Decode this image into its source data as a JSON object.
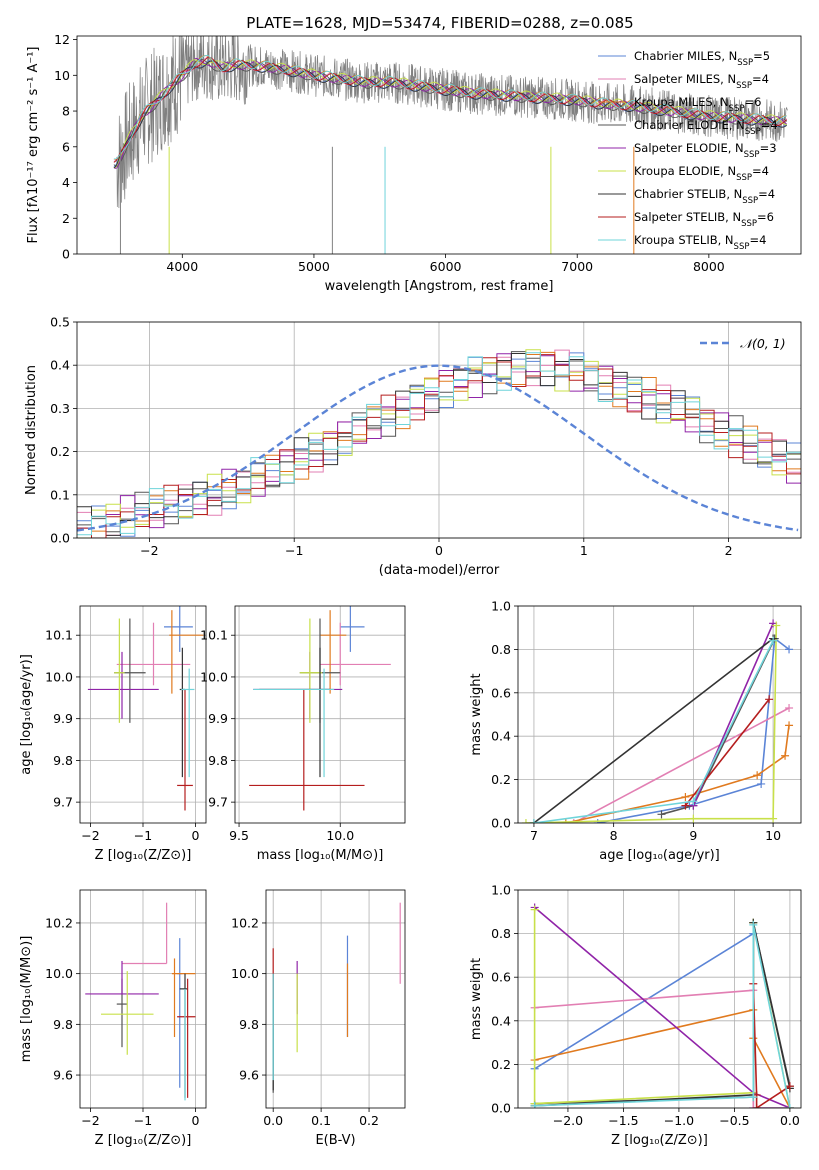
{
  "figure": {
    "title": "PLATE=1628, MJD=53474, FIBERID=0288, z=0.085"
  },
  "series_styles": [
    {
      "name": "Chabrier MILES",
      "nssp": "5",
      "color": "#5b84d6"
    },
    {
      "name": "Salpeter MILES",
      "nssp": "4",
      "color": "#e27fb3"
    },
    {
      "name": "Kroupa MILES",
      "nssp": "6",
      "color": "#e07a1f"
    },
    {
      "name": "Chabrier ELODIE",
      "nssp": "4",
      "color": "#555555"
    },
    {
      "name": "Salpeter ELODIE",
      "nssp": "3",
      "color": "#9024a8"
    },
    {
      "name": "Kroupa ELODIE",
      "nssp": "4",
      "color": "#c8e04a"
    },
    {
      "name": "Chabrier STELIB",
      "nssp": "4",
      "color": "#333333"
    },
    {
      "name": "Salpeter STELIB",
      "nssp": "6",
      "color": "#b51e1e"
    },
    {
      "name": "Kroupa STELIB",
      "nssp": "4",
      "color": "#6fd4da"
    }
  ],
  "chart_data": [
    {
      "id": "spectrum",
      "type": "line",
      "xlabel": "wavelength [Angstrom, rest frame]",
      "ylabel": "Flux [fλ10⁻¹⁷ erg cm⁻² s⁻¹ A⁻¹]",
      "xlim": [
        3200,
        8700
      ],
      "ylim": [
        0,
        12.2
      ],
      "xticks": [
        4000,
        5000,
        6000,
        7000,
        8000
      ],
      "yticks": [
        0,
        2,
        4,
        6,
        8,
        10,
        12
      ],
      "legend_position": "right",
      "data_line_color": "#808080",
      "model_envelope": {
        "x": [
          3500,
          3600,
          3700,
          3800,
          3900,
          4000,
          4100,
          4200,
          4300,
          4400,
          4600,
          4800,
          5000,
          5200,
          5400,
          5600,
          5800,
          6000,
          6200,
          6400,
          6600,
          6800,
          7000,
          7200,
          7400,
          7600,
          7800,
          8000,
          8200,
          8400,
          8600
        ],
        "y": [
          5.0,
          6.5,
          7.8,
          8.5,
          9.3,
          10.0,
          10.7,
          10.8,
          10.4,
          10.6,
          10.5,
          10.3,
          10.0,
          9.8,
          9.6,
          9.6,
          9.4,
          9.2,
          9.0,
          8.9,
          8.8,
          8.7,
          8.6,
          8.4,
          8.3,
          8.1,
          7.9,
          7.7,
          7.6,
          7.5,
          7.4
        ]
      }
    },
    {
      "id": "residuals",
      "type": "histogram",
      "xlabel": "(data-model)/error",
      "ylabel": "Normed distribution",
      "xlim": [
        -2.5,
        2.5
      ],
      "ylim": [
        0,
        0.5
      ],
      "xticks": [
        -2,
        -1,
        0,
        1,
        2
      ],
      "yticks": [
        0.0,
        0.1,
        0.2,
        0.3,
        0.4,
        0.5
      ],
      "bin_edges_start": -2.5,
      "bin_width": 0.1,
      "reference_curve": {
        "label": "𝒩(0, 1)",
        "mean": 0,
        "sigma": 1,
        "color": "#5b84d6",
        "style": "dashed"
      },
      "base_values": [
        0.025,
        0.03,
        0.04,
        0.05,
        0.06,
        0.065,
        0.075,
        0.08,
        0.09,
        0.1,
        0.115,
        0.125,
        0.14,
        0.15,
        0.165,
        0.185,
        0.2,
        0.215,
        0.235,
        0.25,
        0.27,
        0.285,
        0.3,
        0.32,
        0.335,
        0.35,
        0.36,
        0.375,
        0.38,
        0.39,
        0.395,
        0.4,
        0.395,
        0.39,
        0.385,
        0.37,
        0.36,
        0.35,
        0.335,
        0.325,
        0.31,
        0.3,
        0.285,
        0.265,
        0.25,
        0.235,
        0.215,
        0.2,
        0.185,
        0.17
      ],
      "legend_position": "top-right"
    },
    {
      "id": "age_vs_Z",
      "type": "errorbar",
      "xlabel": "Z [log₁₀(Z/Z⊙)]",
      "ylabel": "age  [log₁₀(age/yr)]",
      "xlim": [
        -2.2,
        0.2
      ],
      "ylim": [
        9.65,
        10.17
      ],
      "xticks": [
        -2,
        -1,
        0
      ],
      "yticks": [
        9.7,
        9.8,
        9.9,
        10.0,
        10.1
      ],
      "points": [
        {
          "s": 0,
          "x": -0.3,
          "y": 10.12,
          "xl": 0.3,
          "xh": 0.25,
          "yl": 0.06,
          "yh": 0.05
        },
        {
          "s": 1,
          "x": -0.8,
          "y": 10.03,
          "xl": 0.7,
          "xh": 0.7,
          "yl": 0.05,
          "yh": 0.1
        },
        {
          "s": 2,
          "x": -0.45,
          "y": 10.1,
          "xl": 0.05,
          "xh": 0.6,
          "yl": 0.14,
          "yh": 0.06
        },
        {
          "s": 3,
          "x": -1.25,
          "y": 10.01,
          "xl": 0.3,
          "xh": 0.3,
          "yl": 0.12,
          "yh": 0.13
        },
        {
          "s": 4,
          "x": -1.4,
          "y": 9.97,
          "xl": 0.65,
          "xh": 0.7,
          "yl": 0.07,
          "yh": 0.09
        },
        {
          "s": 5,
          "x": -1.45,
          "y": 10.01,
          "xl": 0.1,
          "xh": 0.1,
          "yl": 0.12,
          "yh": 0.13
        },
        {
          "s": 6,
          "x": -0.25,
          "y": 9.97,
          "xl": 0.05,
          "xh": 0.05,
          "yl": 0.21,
          "yh": 0.1
        },
        {
          "s": 7,
          "x": -0.2,
          "y": 9.74,
          "xl": 0.15,
          "xh": 0.15,
          "yl": 0.06,
          "yh": 0.23
        },
        {
          "s": 8,
          "x": -0.12,
          "y": 9.97,
          "xl": 0.15,
          "xh": 0.1,
          "yl": 0.21,
          "yh": 0.05
        }
      ]
    },
    {
      "id": "age_vs_mass",
      "type": "errorbar",
      "xlabel": "mass [log₁₀(M/M⊙)]",
      "ylabel": "",
      "xlim": [
        9.48,
        10.32
      ],
      "ylim": [
        9.65,
        10.17
      ],
      "xticks": [
        9.5,
        10.0
      ],
      "yticks": [
        9.7,
        9.8,
        9.9,
        10.0,
        10.1
      ],
      "points": [
        {
          "s": 0,
          "x": 10.05,
          "y": 10.12,
          "xl": 0.05,
          "xh": 0.07,
          "yl": 0.06,
          "yh": 0.05
        },
        {
          "s": 1,
          "x": 10.0,
          "y": 10.03,
          "xl": 0.1,
          "xh": 0.25,
          "yl": 0.05,
          "yh": 0.1
        },
        {
          "s": 2,
          "x": 9.95,
          "y": 10.1,
          "xl": 0.05,
          "xh": 0.08,
          "yl": 0.14,
          "yh": 0.06
        },
        {
          "s": 3,
          "x": 9.9,
          "y": 10.01,
          "xl": 0.1,
          "xh": 0.1,
          "yl": 0.12,
          "yh": 0.13
        },
        {
          "s": 4,
          "x": 9.85,
          "y": 9.97,
          "xl": 0.28,
          "xh": 0.16,
          "yl": 0.07,
          "yh": 0.09
        },
        {
          "s": 5,
          "x": 9.85,
          "y": 10.01,
          "xl": 0.05,
          "xh": 0.06,
          "yl": 0.12,
          "yh": 0.13
        },
        {
          "s": 6,
          "x": 9.9,
          "y": 9.97,
          "xl": 0.3,
          "xh": 0.05,
          "yl": 0.21,
          "yh": 0.1
        },
        {
          "s": 7,
          "x": 9.82,
          "y": 9.74,
          "xl": 0.27,
          "xh": 0.3,
          "yl": 0.06,
          "yh": 0.23
        },
        {
          "s": 8,
          "x": 9.92,
          "y": 9.97,
          "xl": 0.35,
          "xh": 0.05,
          "yl": 0.21,
          "yh": 0.05
        }
      ]
    },
    {
      "id": "weight_vs_age",
      "type": "line",
      "xlabel": "age  [log₁₀(age/yr)]",
      "ylabel": "mass weight",
      "xlim": [
        6.8,
        10.35
      ],
      "ylim": [
        0,
        1.0
      ],
      "xticks": [
        7,
        8,
        9,
        10
      ],
      "yticks": [
        0.0,
        0.2,
        0.4,
        0.6,
        0.8,
        1.0
      ],
      "series": [
        {
          "s": 0,
          "x": [
            7.8,
            8.95,
            9.85,
            10.02,
            10.2
          ],
          "y": [
            0.0,
            0.08,
            0.18,
            0.85,
            0.8
          ]
        },
        {
          "s": 1,
          "x": [
            7.5,
            10.2
          ],
          "y": [
            0.0,
            0.53
          ]
        },
        {
          "s": 2,
          "x": [
            7.4,
            8.9,
            9.8,
            10.15,
            10.2
          ],
          "y": [
            0.0,
            0.12,
            0.22,
            0.31,
            0.45
          ]
        },
        {
          "s": 3,
          "x": [
            8.6,
            9.0,
            10.02
          ],
          "y": [
            0.04,
            0.08,
            0.85
          ]
        },
        {
          "s": 4,
          "x": [
            9.0,
            10.0
          ],
          "y": [
            0.08,
            0.92
          ]
        },
        {
          "s": 5,
          "x": [
            6.9,
            9.0,
            10.0,
            10.04
          ],
          "y": [
            0.0,
            0.02,
            0.02,
            0.91
          ]
        },
        {
          "s": 6,
          "x": [
            7.0,
            10.0
          ],
          "y": [
            0.0,
            0.85
          ]
        },
        {
          "s": 7,
          "x": [
            8.9,
            9.95
          ],
          "y": [
            0.08,
            0.57
          ]
        },
        {
          "s": 8,
          "x": [
            7.0,
            9.0,
            10.0
          ],
          "y": [
            0.0,
            0.1,
            0.84
          ]
        }
      ]
    },
    {
      "id": "mass_vs_Z",
      "type": "errorbar",
      "xlabel": "Z [log₁₀(Z/Z⊙)]",
      "ylabel": "mass [log₁₀(M/M⊙)]",
      "xlim": [
        -2.2,
        0.2
      ],
      "ylim": [
        9.47,
        10.33
      ],
      "xticks": [
        -2,
        -1,
        0
      ],
      "yticks": [
        9.6,
        9.8,
        10.0,
        10.2
      ],
      "points": [
        {
          "s": 0,
          "x": -0.3,
          "y": 10.0,
          "xl": 0.05,
          "xh": 0.05,
          "yl": 0.45,
          "yh": 0.14
        },
        {
          "s": 1,
          "x": -0.55,
          "y": 10.04,
          "xl": 0.85,
          "xh": 0.0,
          "yl": 0.0,
          "yh": 0.24
        },
        {
          "s": 2,
          "x": -0.4,
          "y": 10.0,
          "xl": 0.05,
          "xh": 0.4,
          "yl": 0.25,
          "yh": 0.06
        },
        {
          "s": 3,
          "x": -1.4,
          "y": 9.88,
          "xl": 0.1,
          "xh": 0.1,
          "yl": 0.17,
          "yh": 0.1
        },
        {
          "s": 4,
          "x": -1.4,
          "y": 9.92,
          "xl": 0.7,
          "xh": 0.7,
          "yl": 0.0,
          "yh": 0.13
        },
        {
          "s": 5,
          "x": -1.3,
          "y": 9.84,
          "xl": 0.5,
          "xh": 0.5,
          "yl": 0.16,
          "yh": 0.17
        },
        {
          "s": 6,
          "x": -0.2,
          "y": 9.94,
          "xl": 0.1,
          "xh": 0.05,
          "yl": 0.43,
          "yh": 0.06
        },
        {
          "s": 7,
          "x": -0.15,
          "y": 9.83,
          "xl": 0.2,
          "xh": 0.15,
          "yl": 0.32,
          "yh": 0.15
        },
        {
          "s": 8,
          "x": -0.2,
          "y": 9.94,
          "xl": 0.0,
          "xh": 0.0,
          "yl": 0.44,
          "yh": 0.0
        }
      ]
    },
    {
      "id": "mass_vs_EBV",
      "type": "errorbar",
      "xlabel": "E(B-V)",
      "ylabel": "",
      "xlim": [
        -0.015,
        0.275
      ],
      "ylim": [
        9.47,
        10.33
      ],
      "xticks": [
        0.0,
        0.1,
        0.2
      ],
      "yticks": [
        9.6,
        9.8,
        10.0,
        10.2
      ],
      "points": [
        {
          "s": 0,
          "x": 0.155,
          "y": 10.0,
          "xl": 0,
          "xh": 0,
          "yl": 0.25,
          "yh": 0.15
        },
        {
          "s": 1,
          "x": 0.265,
          "y": 10.12,
          "xl": 0,
          "xh": 0,
          "yl": 0.16,
          "yh": 0.16
        },
        {
          "s": 2,
          "x": 0.155,
          "y": 9.92,
          "xl": 0,
          "xh": 0,
          "yl": 0.17,
          "yh": 0.12
        },
        {
          "s": 3,
          "x": 0.0,
          "y": 9.85,
          "xl": 0,
          "xh": 0,
          "yl": 0.32,
          "yh": 0.15
        },
        {
          "s": 4,
          "x": 0.05,
          "y": 9.99,
          "xl": 0,
          "xh": 0,
          "yl": 0.15,
          "yh": 0.06
        },
        {
          "s": 5,
          "x": 0.05,
          "y": 9.85,
          "xl": 0,
          "xh": 0,
          "yl": 0.16,
          "yh": 0.15
        },
        {
          "s": 6,
          "x": 0.0,
          "y": 9.8,
          "xl": 0,
          "xh": 0,
          "yl": 0.26,
          "yh": 0.2
        },
        {
          "s": 7,
          "x": 0.0,
          "y": 10.0,
          "xl": 0,
          "xh": 0,
          "yl": 0.1,
          "yh": 0.1
        },
        {
          "s": 8,
          "x": 0.0,
          "y": 9.8,
          "xl": 0,
          "xh": 0,
          "yl": 0.22,
          "yh": 0.2
        }
      ]
    },
    {
      "id": "weight_vs_Z",
      "type": "line",
      "xlabel": "Z [log₁₀(Z/Z⊙)]",
      "ylabel": "mass weight",
      "xlim": [
        -2.45,
        0.1
      ],
      "ylim": [
        0,
        1.0
      ],
      "xticks": [
        -2.0,
        -1.5,
        -1.0,
        -0.5,
        0.0
      ],
      "yticks": [
        0.0,
        0.2,
        0.4,
        0.6,
        0.8,
        1.0
      ],
      "series": [
        {
          "s": 0,
          "x": [
            -2.3,
            -0.33,
            -0.33,
            0.0
          ],
          "y": [
            0.18,
            0.8,
            0.0,
            0.0
          ]
        },
        {
          "s": 1,
          "x": [
            -2.3,
            -0.33,
            -0.33,
            0.0
          ],
          "y": [
            0.46,
            0.54,
            0.0,
            0.0
          ]
        },
        {
          "s": 2,
          "x": [
            -2.3,
            -0.33,
            -0.33,
            0.0
          ],
          "y": [
            0.22,
            0.45,
            0.32,
            0.0
          ]
        },
        {
          "s": 3,
          "x": [
            -2.3,
            -0.33,
            -0.33,
            0.0
          ],
          "y": [
            0.02,
            0.05,
            0.85,
            0.1
          ]
        },
        {
          "s": 4,
          "x": [
            -2.3,
            -0.33,
            0.0
          ],
          "y": [
            0.92,
            0.07,
            0.0
          ]
        },
        {
          "s": 5,
          "x": [
            -2.3,
            -2.3,
            -0.33,
            -0.33,
            0.0
          ],
          "y": [
            0.91,
            0.02,
            0.07,
            0.85,
            0.0
          ]
        },
        {
          "s": 6,
          "x": [
            -2.3,
            -0.33,
            -0.33,
            0.0
          ],
          "y": [
            0.01,
            0.06,
            0.85,
            0.09
          ]
        },
        {
          "s": 7,
          "x": [
            -0.33,
            -0.3,
            -0.3,
            0.0
          ],
          "y": [
            0.57,
            0.06,
            0.0,
            0.1
          ]
        },
        {
          "s": 8,
          "x": [
            -2.3,
            -0.33,
            -0.33,
            0.0
          ],
          "y": [
            0.01,
            0.05,
            0.84,
            0.0
          ]
        }
      ]
    }
  ]
}
